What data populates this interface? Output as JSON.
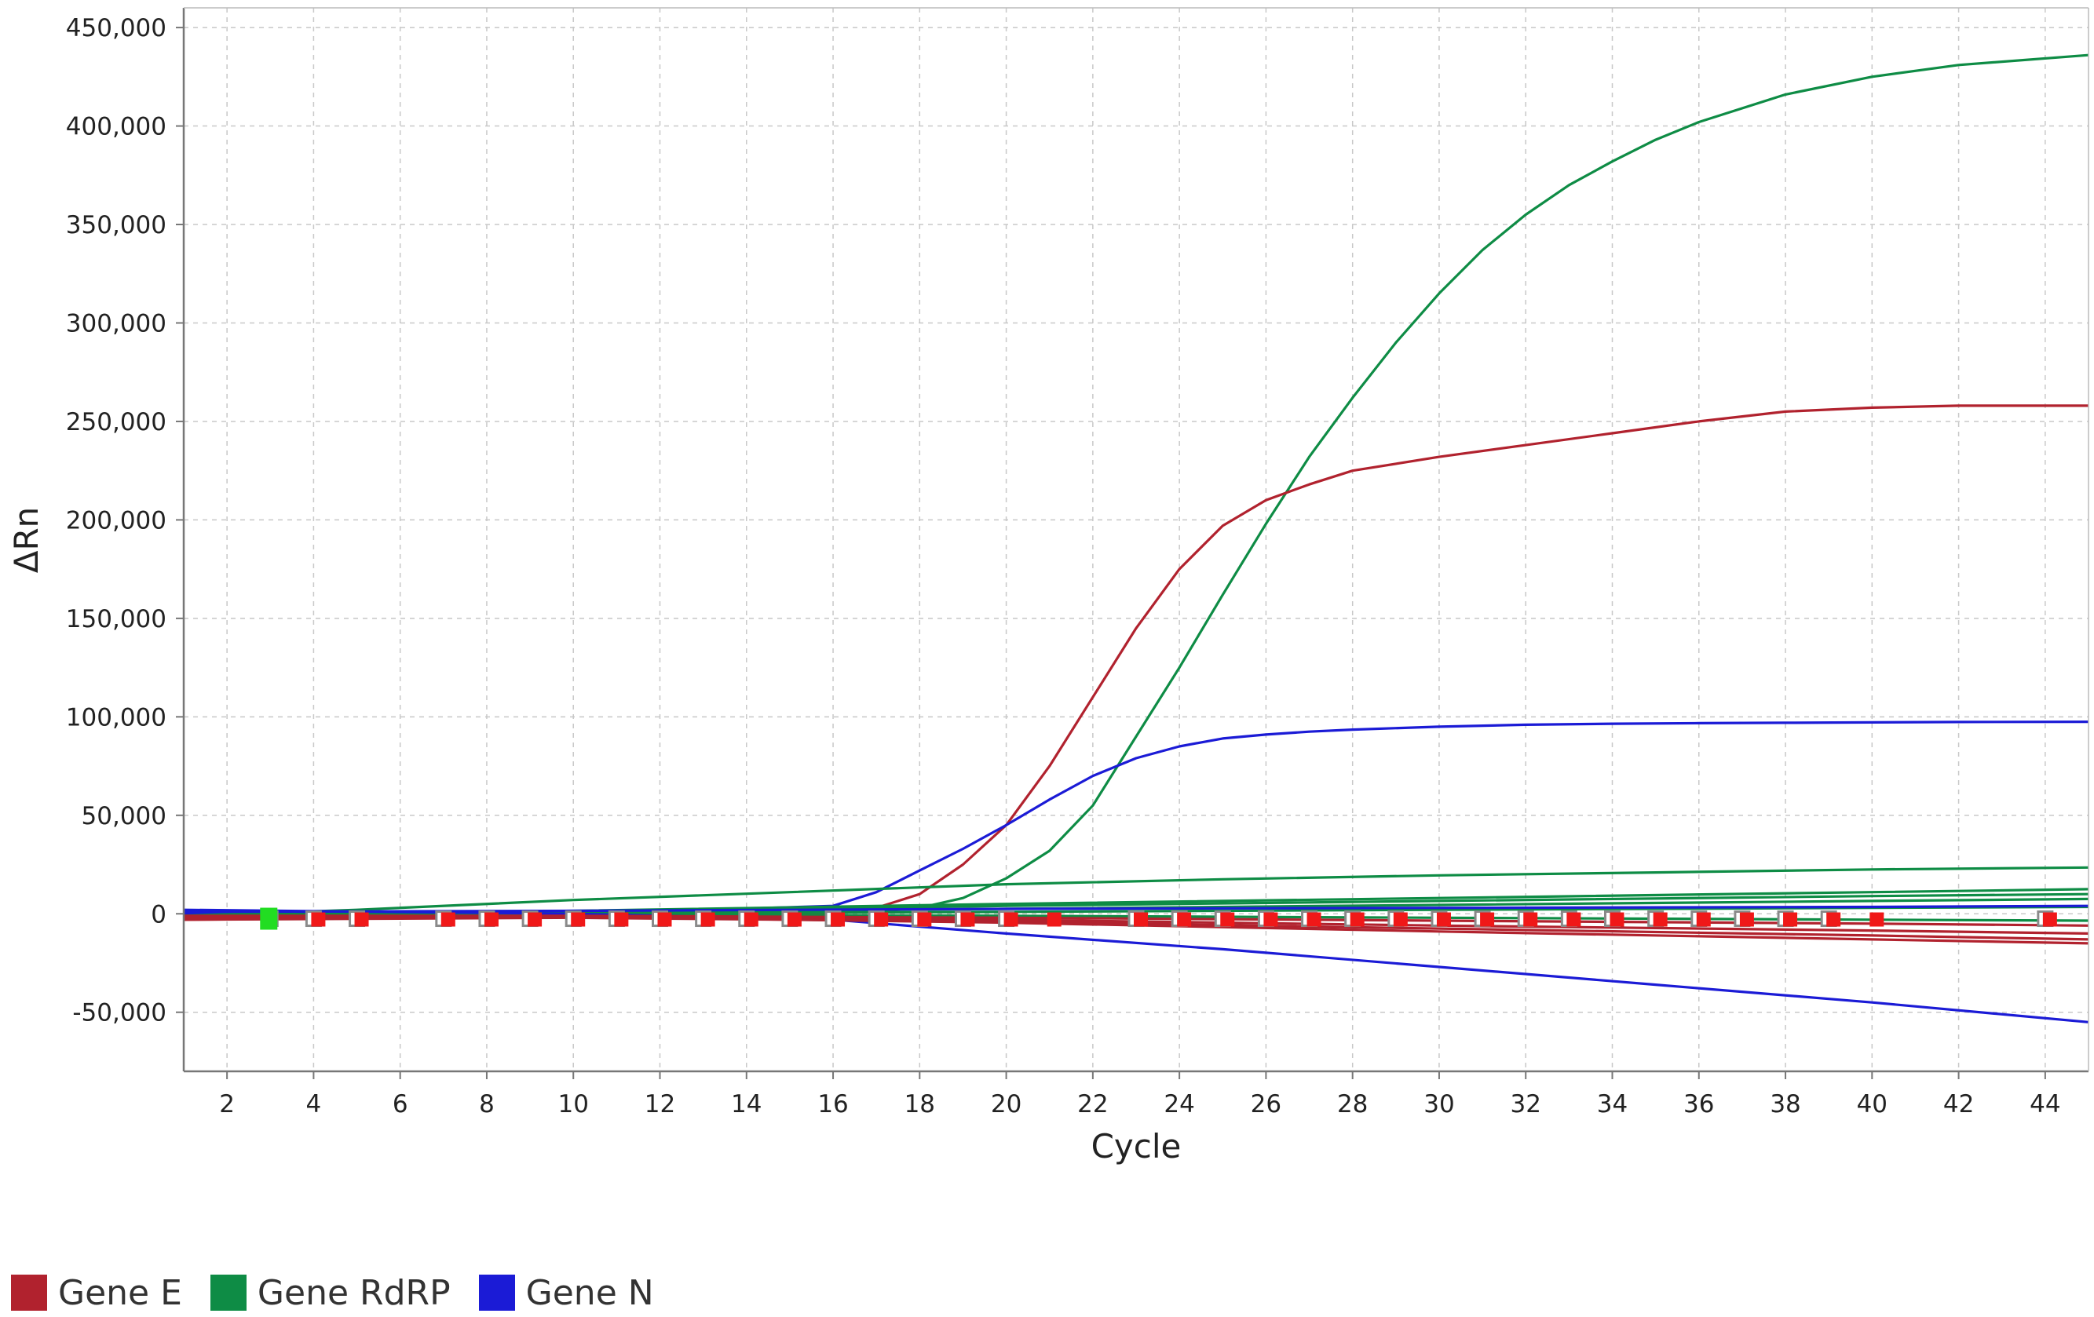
{
  "chart_data": {
    "type": "line",
    "title": "",
    "xlabel": "Cycle",
    "ylabel": "ΔRn",
    "xlim": [
      1,
      45
    ],
    "ylim": [
      -80000,
      460000
    ],
    "x_ticks": [
      2,
      4,
      6,
      8,
      10,
      12,
      14,
      16,
      18,
      20,
      22,
      24,
      26,
      28,
      30,
      32,
      34,
      36,
      38,
      40,
      42,
      44
    ],
    "x_tick_labels": [
      "2",
      "4",
      "6",
      "8",
      "10",
      "12",
      "14",
      "16",
      "18",
      "20",
      "22",
      "24",
      "26",
      "28",
      "30",
      "32",
      "34",
      "36",
      "38",
      "40",
      "42",
      "44"
    ],
    "y_ticks": [
      -50000,
      0,
      50000,
      100000,
      150000,
      200000,
      250000,
      300000,
      350000,
      400000,
      450000
    ],
    "y_tick_labels": [
      "-50,000",
      "0",
      "50,000",
      "100,000",
      "150,000",
      "200,000",
      "250,000",
      "300,000",
      "350,000",
      "400,000",
      "450,000"
    ],
    "grid": true,
    "legend_position": "bottom-left",
    "legend": [
      {
        "label": "Gene E",
        "color": "#b1222e"
      },
      {
        "label": "Gene RdRP",
        "color": "#0e8c45"
      },
      {
        "label": "Gene N",
        "color": "#1b1bd6"
      }
    ],
    "series": [
      {
        "group": "Gene RdRP",
        "color": "#0e8c45",
        "x": [
          1,
          10,
          17,
          18,
          19,
          20,
          21,
          22,
          23,
          24,
          25,
          26,
          27,
          28,
          29,
          30,
          31,
          32,
          33,
          34,
          35,
          36,
          38,
          40,
          42,
          45
        ],
        "y": [
          0,
          0,
          1000,
          3000,
          8000,
          18000,
          32000,
          55000,
          90000,
          125000,
          162000,
          198000,
          232000,
          262000,
          290000,
          315000,
          337000,
          355000,
          370000,
          382000,
          393000,
          402000,
          416000,
          425000,
          431000,
          436000
        ]
      },
      {
        "group": "Gene E",
        "color": "#b1222e",
        "x": [
          1,
          10,
          16,
          17,
          18,
          19,
          20,
          21,
          22,
          23,
          24,
          25,
          26,
          27,
          28,
          30,
          32,
          34,
          36,
          38,
          40,
          42,
          45
        ],
        "y": [
          0,
          0,
          0,
          3000,
          10000,
          25000,
          45000,
          75000,
          110000,
          145000,
          175000,
          197000,
          210000,
          218000,
          225000,
          232000,
          238000,
          244000,
          250000,
          255000,
          257000,
          258000,
          258000
        ]
      },
      {
        "group": "Gene N",
        "color": "#1b1bd6",
        "x": [
          1,
          10,
          16,
          17,
          18,
          19,
          20,
          21,
          22,
          23,
          24,
          25,
          26,
          27,
          28,
          30,
          32,
          34,
          36,
          38,
          40,
          42,
          45
        ],
        "y": [
          0,
          0,
          4000,
          11000,
          22000,
          33000,
          45000,
          58000,
          70000,
          79000,
          85000,
          89000,
          91000,
          92500,
          93500,
          95000,
          96000,
          96500,
          96800,
          97000,
          97200,
          97400,
          97500
        ]
      },
      {
        "group": "Gene RdRP",
        "color": "#0e8c45",
        "x": [
          1,
          5,
          10,
          15,
          20,
          25,
          30,
          35,
          40,
          45
        ],
        "y": [
          -1000,
          2000,
          7000,
          11000,
          15000,
          17500,
          19500,
          21000,
          22500,
          23500
        ]
      },
      {
        "group": "Gene RdRP",
        "color": "#0e8c45",
        "x": [
          1,
          10,
          20,
          30,
          40,
          45
        ],
        "y": [
          -1000,
          1500,
          5000,
          8000,
          11000,
          12500
        ]
      },
      {
        "group": "Gene RdRP",
        "color": "#0e8c45",
        "x": [
          1,
          10,
          20,
          30,
          40,
          45
        ],
        "y": [
          -1500,
          1000,
          4000,
          6500,
          9000,
          10000
        ]
      },
      {
        "group": "Gene RdRP",
        "color": "#0e8c45",
        "x": [
          1,
          10,
          20,
          30,
          40,
          45
        ],
        "y": [
          -1500,
          500,
          2500,
          4500,
          6500,
          7500
        ]
      },
      {
        "group": "Gene RdRP",
        "color": "#0e8c45",
        "x": [
          1,
          10,
          20,
          30,
          40,
          45
        ],
        "y": [
          -2000,
          0,
          1000,
          2000,
          3000,
          3500
        ]
      },
      {
        "group": "Gene RdRP",
        "color": "#0e8c45",
        "x": [
          1,
          10,
          20,
          30,
          40,
          45
        ],
        "y": [
          -2000,
          -500,
          -1000,
          -2000,
          -3000,
          -3500
        ]
      },
      {
        "group": "Gene N",
        "color": "#1b1bd6",
        "x": [
          1,
          10,
          20,
          30,
          40,
          45
        ],
        "y": [
          1000,
          1500,
          2500,
          3000,
          3500,
          4000
        ]
      },
      {
        "group": "Gene N",
        "color": "#1b1bd6",
        "x": [
          1,
          10,
          16,
          20,
          25,
          30,
          35,
          40,
          45
        ],
        "y": [
          2000,
          0,
          -3000,
          -10000,
          -18000,
          -27000,
          -36000,
          -45000,
          -55000
        ]
      },
      {
        "group": "Gene E",
        "color": "#b1222e",
        "x": [
          1,
          10,
          20,
          30,
          40,
          45
        ],
        "y": [
          -3000,
          -1500,
          -3000,
          -6000,
          -8500,
          -10000
        ]
      },
      {
        "group": "Gene E",
        "color": "#b1222e",
        "x": [
          1,
          10,
          20,
          30,
          40,
          45
        ],
        "y": [
          -3000,
          -2000,
          -4000,
          -7500,
          -11000,
          -13000
        ]
      },
      {
        "group": "Gene E",
        "color": "#b1222e",
        "x": [
          1,
          10,
          20,
          30,
          40,
          45
        ],
        "y": [
          -2000,
          -1500,
          -4500,
          -9000,
          -13000,
          -15000
        ]
      },
      {
        "group": "Gene E",
        "color": "#b1222e",
        "x": [
          1,
          10,
          20,
          30,
          40,
          45
        ],
        "y": [
          -1000,
          -1000,
          -2000,
          -3500,
          -5000,
          -6000
        ]
      }
    ],
    "markers_red": [
      4,
      5,
      7,
      8,
      9,
      10,
      11,
      12,
      13,
      14,
      15,
      16,
      17,
      18,
      19,
      20,
      21,
      23,
      24,
      25,
      26,
      27,
      28,
      29,
      30,
      31,
      32,
      33,
      34,
      35,
      36,
      37,
      38,
      39,
      40,
      44
    ],
    "markers_gray": [
      3,
      4,
      5,
      7,
      8,
      9,
      10,
      11,
      12,
      13,
      14,
      15,
      16,
      17,
      18,
      19,
      20,
      23,
      24,
      25,
      26,
      27,
      28,
      29,
      30,
      31,
      32,
      33,
      34,
      35,
      36,
      37,
      38,
      39,
      44
    ],
    "marker_green": 3,
    "marker_y": -2500
  }
}
